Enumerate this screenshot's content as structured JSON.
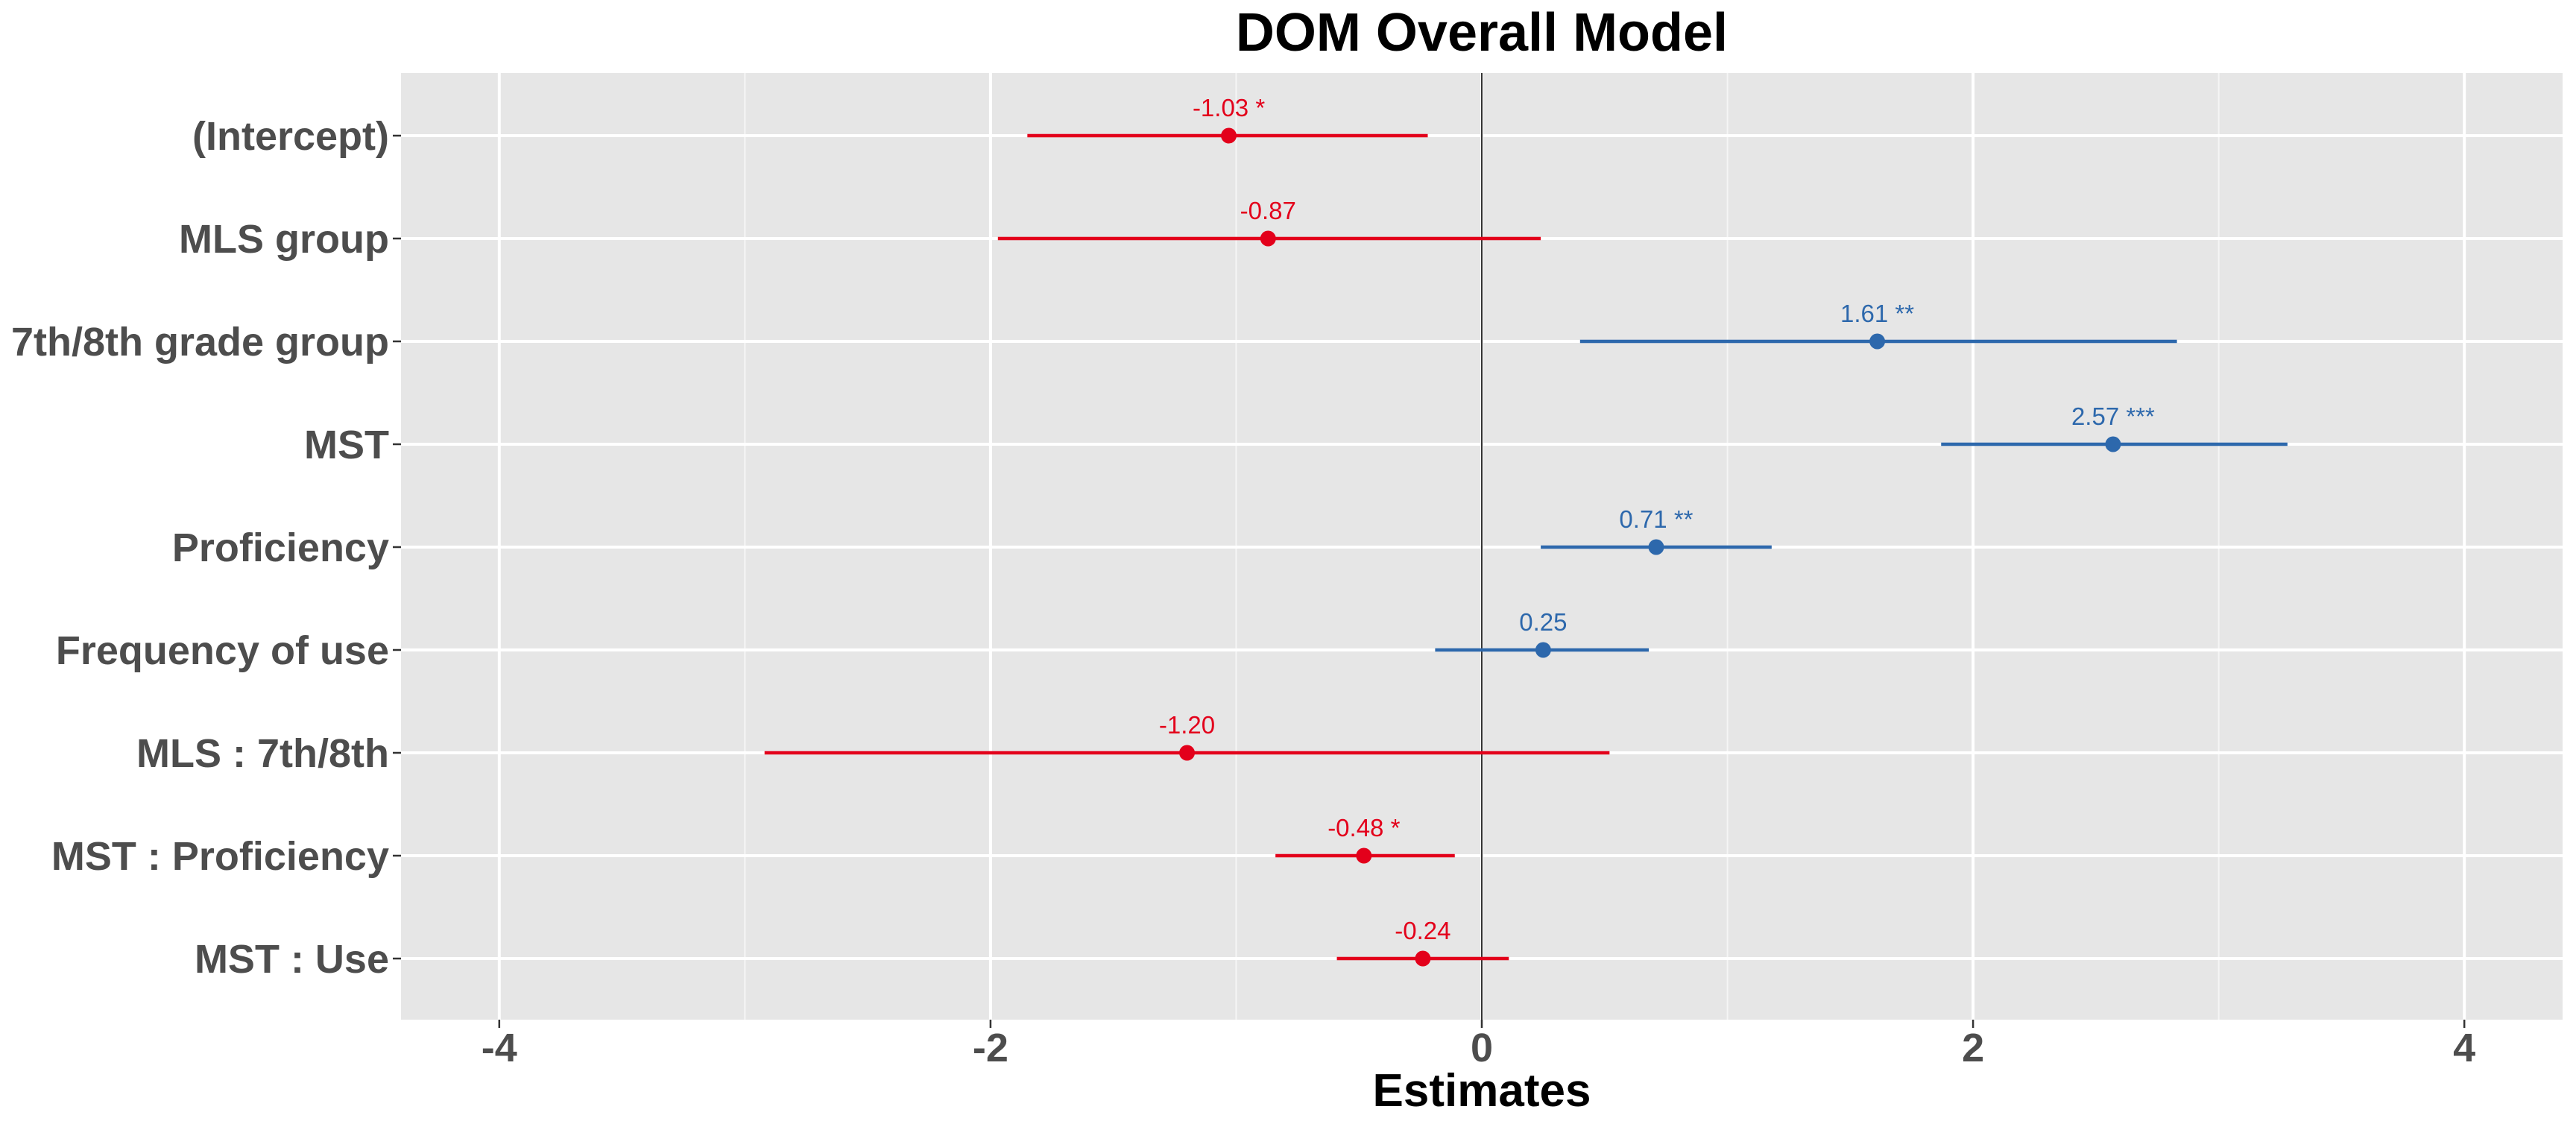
{
  "chart_data": {
    "type": "forest",
    "title": "DOM Overall Model",
    "xlabel": "Estimates",
    "ylabel": "",
    "xlim": [
      -4.4,
      4.4
    ],
    "x_ticks": [
      -4,
      -2,
      0,
      2,
      4
    ],
    "x_tick_labels": [
      "-4",
      "-2",
      "0",
      "2",
      "4"
    ],
    "grid": true,
    "reference_line_x": 0,
    "colors": {
      "negative": "#e3001b",
      "positive": "#2d68ac"
    },
    "terms": [
      {
        "label": "(Intercept)",
        "estimate": -1.03,
        "ci_low": -1.85,
        "ci_high": -0.22,
        "text": "-1.03 *"
      },
      {
        "label": "MLS group",
        "estimate": -0.87,
        "ci_low": -1.97,
        "ci_high": 0.24,
        "text": "-0.87"
      },
      {
        "label": "7th/8th grade group",
        "estimate": 1.61,
        "ci_low": 0.4,
        "ci_high": 2.83,
        "text": "1.61 **"
      },
      {
        "label": "MST",
        "estimate": 2.57,
        "ci_low": 1.87,
        "ci_high": 3.28,
        "text": "2.57 ***"
      },
      {
        "label": "Proficiency",
        "estimate": 0.71,
        "ci_low": 0.24,
        "ci_high": 1.18,
        "text": "0.71 **"
      },
      {
        "label": "Frequency of use",
        "estimate": 0.25,
        "ci_low": -0.19,
        "ci_high": 0.68,
        "text": "0.25"
      },
      {
        "label": "MLS : 7th/8th",
        "estimate": -1.2,
        "ci_low": -2.92,
        "ci_high": 0.52,
        "text": "-1.20"
      },
      {
        "label": "MST : Proficiency",
        "estimate": -0.48,
        "ci_low": -0.84,
        "ci_high": -0.11,
        "text": "-0.48 *"
      },
      {
        "label": "MST : Use",
        "estimate": -0.24,
        "ci_low": -0.59,
        "ci_high": 0.11,
        "text": "-0.24"
      }
    ]
  }
}
